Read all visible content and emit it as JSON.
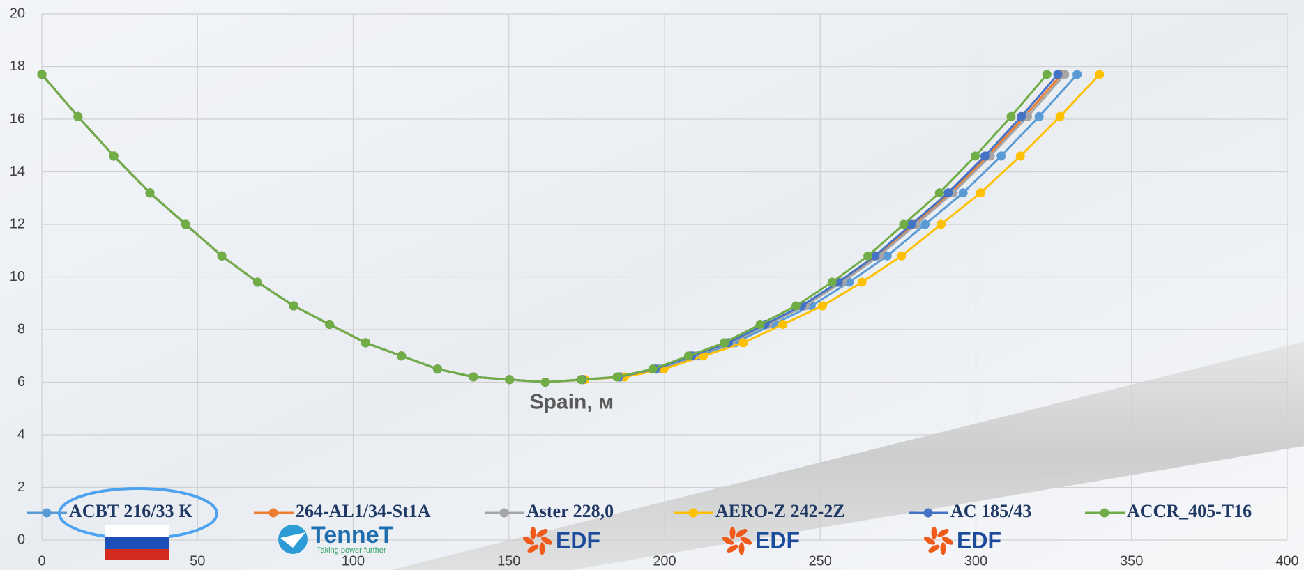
{
  "chart_data": {
    "type": "line",
    "annotation": "Spain, м",
    "xlim": [
      0,
      400
    ],
    "xticks": [
      0,
      50,
      100,
      150,
      200,
      250,
      300,
      350,
      400
    ],
    "ylim": [
      0,
      20
    ],
    "yticks": [
      0,
      2,
      4,
      6,
      8,
      10,
      12,
      14,
      16,
      18,
      20
    ],
    "grid": true,
    "legend": "bottom",
    "series": [
      {
        "name": "ACBT 216/33 K",
        "color": "#5b9bd5",
        "x": [
          0,
          11.6,
          23.1,
          34.7,
          46.2,
          57.8,
          69.3,
          80.9,
          92.4,
          104,
          115.5,
          127.1,
          138.6,
          150.2,
          161.7,
          173.9,
          186.1,
          198.3,
          210.5,
          222.7,
          234.9,
          247.1,
          259.3,
          271.5,
          283.7,
          295.9,
          308.1,
          320.3,
          332.5
        ],
        "values": [
          17.7,
          16.1,
          14.6,
          13.2,
          12.0,
          10.8,
          9.8,
          8.9,
          8.2,
          7.5,
          7.0,
          6.5,
          6.2,
          6.1,
          6.0,
          6.1,
          6.2,
          6.5,
          7.0,
          7.5,
          8.2,
          8.9,
          9.8,
          10.8,
          12.0,
          13.2,
          14.6,
          16.1,
          17.7
        ]
      },
      {
        "name": "264-AL1/34-St1A",
        "color": "#ed7d31",
        "x": [
          0,
          11.6,
          23.1,
          34.7,
          46.2,
          57.8,
          69.3,
          80.9,
          92.4,
          104,
          115.5,
          127.1,
          138.6,
          150.2,
          161.7,
          173.5,
          185.4,
          197.2,
          209.1,
          220.9,
          232.7,
          244.6,
          256.4,
          268.3,
          280.1,
          291.9,
          303.8,
          315.6,
          327.5
        ],
        "values": [
          17.7,
          16.1,
          14.6,
          13.2,
          12.0,
          10.8,
          9.8,
          8.9,
          8.2,
          7.5,
          7.0,
          6.5,
          6.2,
          6.1,
          6.0,
          6.1,
          6.2,
          6.5,
          7.0,
          7.5,
          8.2,
          8.9,
          9.8,
          10.8,
          12.0,
          13.2,
          14.6,
          16.1,
          17.7
        ]
      },
      {
        "name": "Aster 228,0",
        "color": "#a5a5a5",
        "x": [
          0,
          11.6,
          23.1,
          34.7,
          46.2,
          57.8,
          69.3,
          80.9,
          92.4,
          104,
          115.5,
          127.1,
          138.6,
          150.2,
          161.7,
          173.6,
          185.5,
          197.4,
          209.4,
          221.3,
          233.2,
          245.1,
          257.0,
          268.9,
          280.8,
          292.7,
          304.6,
          316.6,
          328.5
        ],
        "values": [
          17.7,
          16.1,
          14.6,
          13.2,
          12.0,
          10.8,
          9.8,
          8.9,
          8.2,
          7.5,
          7.0,
          6.5,
          6.2,
          6.1,
          6.0,
          6.1,
          6.2,
          6.5,
          7.0,
          7.5,
          8.2,
          8.9,
          9.8,
          10.8,
          12.0,
          13.2,
          14.6,
          16.1,
          17.7
        ]
      },
      {
        "name": "AERO-Z 242-2Z",
        "color": "#ffc000",
        "x": [
          0,
          11.6,
          23.1,
          34.7,
          46.2,
          57.8,
          69.3,
          80.9,
          92.4,
          104,
          115.5,
          127.1,
          138.6,
          150.2,
          161.7,
          174.4,
          187.1,
          199.8,
          212.5,
          225.3,
          238.0,
          250.7,
          263.4,
          276.1,
          288.8,
          301.5,
          314.3,
          327.0,
          339.7
        ],
        "values": [
          17.7,
          16.1,
          14.6,
          13.2,
          12.0,
          10.8,
          9.8,
          8.9,
          8.2,
          7.5,
          7.0,
          6.5,
          6.2,
          6.1,
          6.0,
          6.1,
          6.2,
          6.5,
          7.0,
          7.5,
          8.2,
          8.9,
          9.8,
          10.8,
          12.0,
          13.2,
          14.6,
          16.1,
          17.7
        ]
      },
      {
        "name": "AC 185/43",
        "color": "#4472c4",
        "x": [
          0,
          11.6,
          23.1,
          34.7,
          46.2,
          57.8,
          69.3,
          80.9,
          92.4,
          104,
          115.5,
          127.1,
          138.6,
          150.2,
          161.7,
          173.5,
          185.2,
          197.0,
          208.7,
          220.5,
          232.3,
          244.0,
          255.8,
          267.6,
          279.3,
          291.1,
          302.9,
          314.6,
          326.3
        ],
        "values": [
          17.7,
          16.1,
          14.6,
          13.2,
          12.0,
          10.8,
          9.8,
          8.9,
          8.2,
          7.5,
          7.0,
          6.5,
          6.2,
          6.1,
          6.0,
          6.1,
          6.2,
          6.5,
          7.0,
          7.5,
          8.2,
          8.9,
          9.8,
          10.8,
          12.0,
          13.2,
          14.6,
          16.1,
          17.7
        ]
      },
      {
        "name": "ACCR_405-T16",
        "color": "#70ad47",
        "x": [
          0,
          11.6,
          23.1,
          34.7,
          46.2,
          57.8,
          69.3,
          80.9,
          92.4,
          104,
          115.5,
          127.1,
          138.6,
          150.2,
          161.7,
          173.2,
          184.7,
          196.2,
          207.7,
          219.2,
          230.7,
          242.2,
          253.8,
          265.3,
          276.8,
          288.3,
          299.8,
          311.3,
          322.8
        ],
        "values": [
          17.7,
          16.1,
          14.6,
          13.2,
          12.0,
          10.8,
          9.8,
          8.9,
          8.2,
          7.5,
          7.0,
          6.5,
          6.2,
          6.1,
          6.0,
          6.1,
          6.2,
          6.5,
          7.0,
          7.5,
          8.2,
          8.9,
          9.8,
          10.8,
          12.0,
          13.2,
          14.6,
          16.1,
          17.7
        ]
      }
    ]
  },
  "logos": [
    "TenneT",
    "Taking power further",
    "EDF",
    "EDF",
    "EDF"
  ]
}
